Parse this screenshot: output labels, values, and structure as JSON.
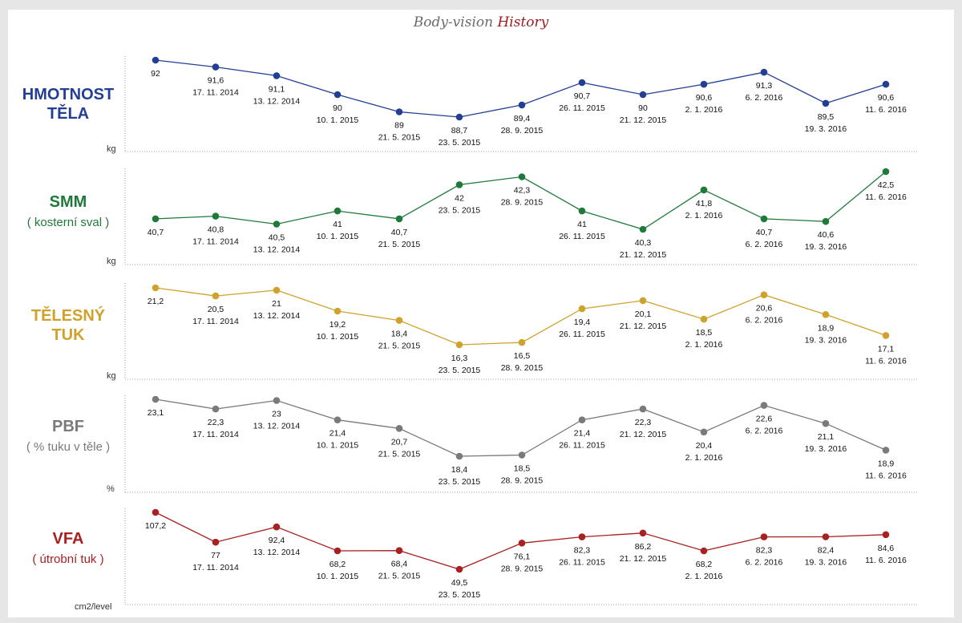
{
  "title": {
    "part1": "Body-vision",
    "part2": "History"
  },
  "dates": [
    "",
    "17. 11. 2014",
    "13. 12. 2014",
    "10. 1. 2015",
    "21. 5. 2015",
    "23. 5. 2015",
    "28. 9. 2015",
    "26. 11. 2015",
    "21. 12. 2015",
    "2. 1. 2016",
    "6. 2. 2016",
    "19. 3. 2016",
    "11. 6. 2016"
  ],
  "panels": [
    {
      "label": "HMOTNOST TĚLA",
      "label_lines": [
        "HMOTNOST",
        "TĚLA"
      ],
      "sublabel": "",
      "unit": "kg",
      "color": "#233f95"
    },
    {
      "label": "SMM",
      "label_lines": [
        "SMM"
      ],
      "sublabel": "( kosterní sval )",
      "unit": "kg",
      "color": "#1f7a3a"
    },
    {
      "label": "TĚLESNÝ TUK",
      "label_lines": [
        "TĚLESNÝ",
        "TUK"
      ],
      "sublabel": "",
      "unit": "kg",
      "color": "#cfa22c"
    },
    {
      "label": "PBF",
      "label_lines": [
        "PBF"
      ],
      "sublabel": "( % tuku v těle )",
      "unit": "%",
      "color": "#7a7a7a"
    },
    {
      "label": "VFA",
      "label_lines": [
        "VFA"
      ],
      "sublabel": "( útrobní tuk )",
      "unit": "cm2/level",
      "color": "#a82020"
    }
  ],
  "chart_data": [
    {
      "type": "line",
      "title": "HMOTNOST TĚLA",
      "ylabel": "kg",
      "x": [
        "",
        "17. 11. 2014",
        "13. 12. 2014",
        "10. 1. 2015",
        "21. 5. 2015",
        "23. 5. 2015",
        "28. 9. 2015",
        "26. 11. 2015",
        "21. 12. 2015",
        "2. 1. 2016",
        "6. 2. 2016",
        "19. 3. 2016",
        "11. 6. 2016"
      ],
      "series": [
        {
          "values": [
            92,
            91.6,
            91.1,
            90,
            89,
            88.7,
            89.4,
            90.7,
            90,
            90.6,
            91.3,
            89.5,
            90.6
          ]
        }
      ],
      "value_labels": [
        "92",
        "91,6",
        "91,1",
        "90",
        "89",
        "88,7",
        "89,4",
        "90,7",
        "90",
        "90,6",
        "91,3",
        "89,5",
        "90,6"
      ],
      "grid": false
    },
    {
      "type": "line",
      "title": "SMM",
      "ylabel": "kg",
      "x": [
        "",
        "17. 11. 2014",
        "13. 12. 2014",
        "10. 1. 2015",
        "21. 5. 2015",
        "23. 5. 2015",
        "28. 9. 2015",
        "26. 11. 2015",
        "21. 12. 2015",
        "2. 1. 2016",
        "6. 2. 2016",
        "19. 3. 2016",
        "11. 6. 2016"
      ],
      "series": [
        {
          "values": [
            40.7,
            40.8,
            40.5,
            41,
            40.7,
            42,
            42.3,
            41,
            40.3,
            41.8,
            40.7,
            40.6,
            42.5
          ]
        }
      ],
      "value_labels": [
        "40,7",
        "40,8",
        "40,5",
        "41",
        "40,7",
        "42",
        "42,3",
        "41",
        "40,3",
        "41,8",
        "40,7",
        "40,6",
        "42,5"
      ],
      "grid": false
    },
    {
      "type": "line",
      "title": "TĚLESNÝ TUK",
      "ylabel": "kg",
      "x": [
        "",
        "17. 11. 2014",
        "13. 12. 2014",
        "10. 1. 2015",
        "21. 5. 2015",
        "23. 5. 2015",
        "28. 9. 2015",
        "26. 11. 2015",
        "21. 12. 2015",
        "2. 1. 2016",
        "6. 2. 2016",
        "19. 3. 2016",
        "11. 6. 2016"
      ],
      "series": [
        {
          "values": [
            21.2,
            20.5,
            21,
            19.2,
            18.4,
            16.3,
            16.5,
            19.4,
            20.1,
            18.5,
            20.6,
            18.9,
            17.1
          ]
        }
      ],
      "value_labels": [
        "21,2",
        "20,5",
        "21",
        "19,2",
        "18,4",
        "16,3",
        "16,5",
        "19,4",
        "20,1",
        "18,5",
        "20,6",
        "18,9",
        "17,1"
      ],
      "grid": false
    },
    {
      "type": "line",
      "title": "PBF",
      "ylabel": "%",
      "x": [
        "",
        "17. 11. 2014",
        "13. 12. 2014",
        "10. 1. 2015",
        "21. 5. 2015",
        "23. 5. 2015",
        "28. 9. 2015",
        "26. 11. 2015",
        "21. 12. 2015",
        "2. 1. 2016",
        "6. 2. 2016",
        "19. 3. 2016",
        "11. 6. 2016"
      ],
      "series": [
        {
          "values": [
            23.1,
            22.3,
            23,
            21.4,
            20.7,
            18.4,
            18.5,
            21.4,
            22.3,
            20.4,
            22.6,
            21.1,
            18.9
          ]
        }
      ],
      "value_labels": [
        "23,1",
        "22,3",
        "23",
        "21,4",
        "20,7",
        "18,4",
        "18,5",
        "21,4",
        "22,3",
        "20,4",
        "22,6",
        "21,1",
        "18,9"
      ],
      "grid": false
    },
    {
      "type": "line",
      "title": "VFA",
      "ylabel": "cm2/level",
      "x": [
        "",
        "17. 11. 2014",
        "13. 12. 2014",
        "10. 1. 2015",
        "21. 5. 2015",
        "23. 5. 2015",
        "28. 9. 2015",
        "26. 11. 2015",
        "21. 12. 2015",
        "2. 1. 2016",
        "6. 2. 2016",
        "19. 3. 2016",
        "11. 6. 2016"
      ],
      "series": [
        {
          "values": [
            107.2,
            77,
            92.4,
            68.2,
            68.4,
            49.5,
            76.1,
            82.3,
            86.2,
            68.2,
            82.3,
            82.4,
            84.6
          ]
        }
      ],
      "value_labels": [
        "107,2",
        "77",
        "92,4",
        "68,2",
        "68,4",
        "49,5",
        "76,1",
        "82,3",
        "86,2",
        "68,2",
        "82,3",
        "82,4",
        "84,6"
      ],
      "grid": false
    }
  ]
}
